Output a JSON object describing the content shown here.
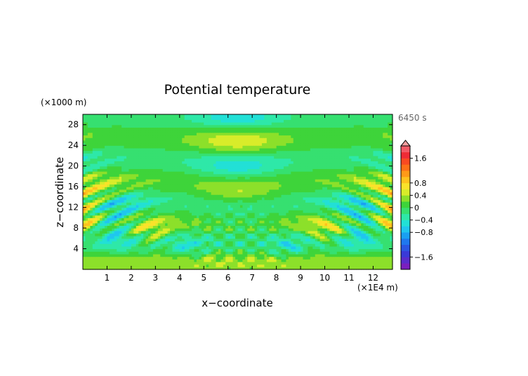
{
  "chart_data": {
    "type": "heatmap",
    "title": "Potential temperature",
    "time_label": "6450 s",
    "x_unit_label": "(×1E4 m)",
    "z_unit_label": "(×1000 m)",
    "xlabel": "x−coordinate",
    "ylabel": "z−coordinate",
    "xlim": [
      0,
      12.8
    ],
    "ylim": [
      0,
      30
    ],
    "x_ticks": [
      1,
      2,
      3,
      4,
      5,
      6,
      7,
      8,
      9,
      10,
      11,
      12
    ],
    "x_tick_labels": [
      "1",
      "2",
      "3",
      "4",
      "5",
      "6",
      "7",
      "8",
      "9",
      "10",
      "11",
      "12"
    ],
    "y_ticks": [
      4,
      8,
      12,
      16,
      20,
      24,
      28
    ],
    "y_tick_labels": [
      "4",
      "8",
      "12",
      "16",
      "20",
      "24",
      "28"
    ],
    "colorbar": {
      "levels": [
        -2.0,
        -1.8,
        -1.6,
        -1.4,
        -1.2,
        -1.0,
        -0.8,
        -0.6,
        -0.4,
        -0.2,
        0.0,
        0.2,
        0.4,
        0.6,
        0.8,
        1.0,
        1.2,
        1.4,
        1.6,
        1.8,
        2.0
      ],
      "colors": [
        "#7a1fbf",
        "#5a2ccc",
        "#3a3ad8",
        "#2a56e2",
        "#1f78ee",
        "#1aa0f2",
        "#20c6ee",
        "#22e0d6",
        "#2ee8a8",
        "#36e070",
        "#3ed43a",
        "#8ce02a",
        "#d8ec2a",
        "#fae22a",
        "#ffc21e",
        "#ff9a18",
        "#ff7018",
        "#fa4a22",
        "#ef2b36",
        "#f25a66"
      ],
      "tick_values": [
        1.6,
        0.8,
        0.4,
        0,
        -0.4,
        -0.8,
        -1.6
      ],
      "tick_labels": [
        "1.6",
        "0.8",
        "0.4",
        "0",
        "−0.4",
        "−0.8",
        "−1.6"
      ],
      "overflow_color": "#f5a0a0"
    },
    "field": {
      "description_source": "reconstructed gravity-wave pattern",
      "nx": 128,
      "nz": 60
    }
  }
}
